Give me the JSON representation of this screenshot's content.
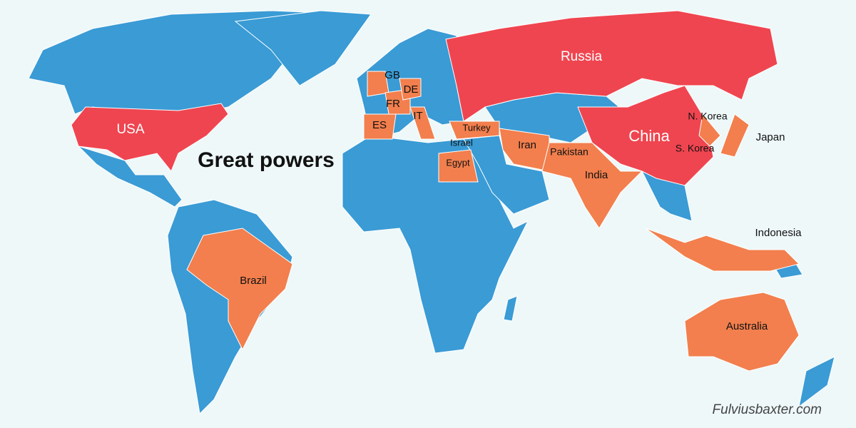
{
  "title": "Great powers",
  "countries": [
    "Russia",
    "USA",
    "China",
    "GB",
    "DE",
    "FR",
    "IT",
    "ES",
    "Turkey",
    "Israel",
    "Egypt",
    "Iran",
    "Pakistan",
    "India",
    "N. Korea",
    "S. Korea",
    "Japan",
    "Indonesia",
    "Brazil",
    "Australia"
  ],
  "credit": "Fulviusbaxter.com"
}
